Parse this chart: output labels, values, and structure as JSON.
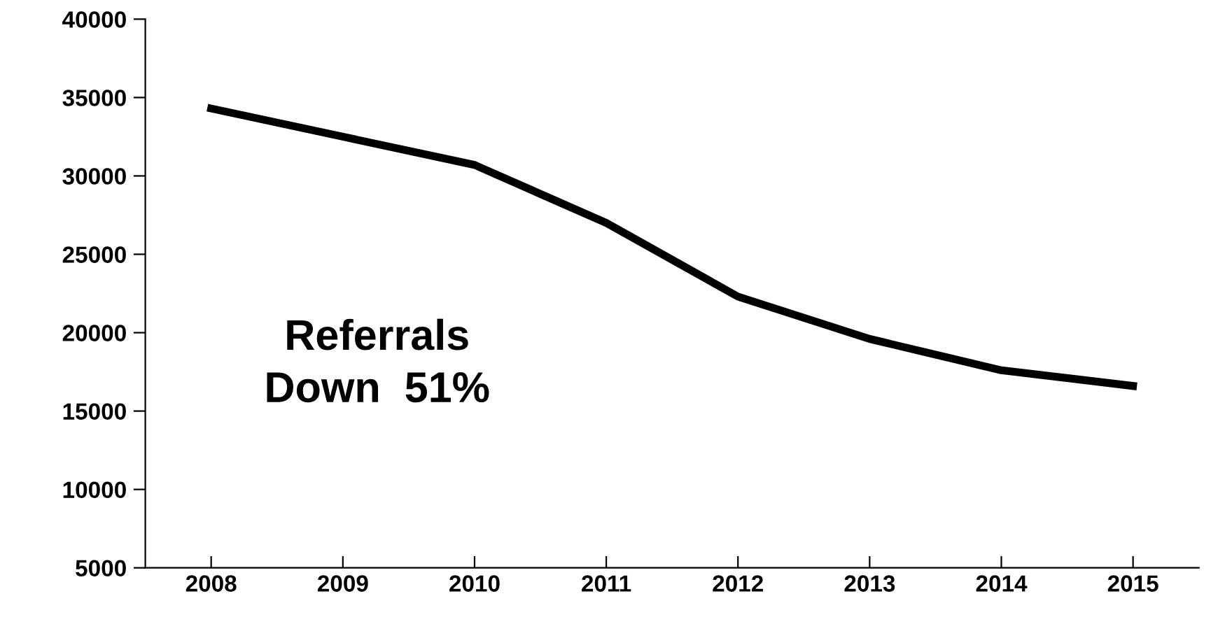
{
  "chart_data": {
    "type": "line",
    "categories": [
      "2008",
      "2009",
      "2010",
      "2011",
      "2012",
      "2013",
      "2014",
      "2015"
    ],
    "series": [
      {
        "color": "#000000",
        "values": [
          34300,
          32500,
          30700,
          27000,
          22300,
          19600,
          17600,
          16600
        ]
      }
    ],
    "ylim": [
      5000,
      40000
    ],
    "yticks": [
      5000,
      10000,
      15000,
      20000,
      25000,
      30000,
      35000,
      40000
    ],
    "grid": false,
    "legend": false,
    "marker": "none",
    "line_style": "solid",
    "annotations": [
      "Referrals\nDown  51%"
    ]
  }
}
